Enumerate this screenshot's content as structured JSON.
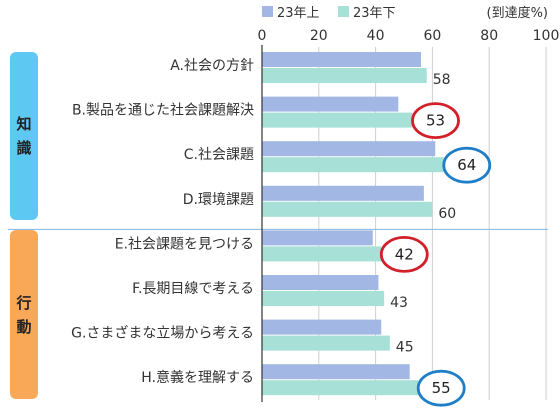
{
  "chart_data": {
    "type": "bar",
    "orientation": "horizontal",
    "unit_label": "(到達度%)",
    "xlim": [
      0,
      100
    ],
    "xticks": [
      0,
      20,
      40,
      60,
      80,
      100
    ],
    "grid": true,
    "legend_position": "top",
    "series": [
      {
        "name": "23年上",
        "color": "#a3b7e4"
      },
      {
        "name": "23年下",
        "color": "#a6e0d6"
      }
    ],
    "categories": [
      {
        "label": "A.社会の方針",
        "v1": 56,
        "v2": 58
      },
      {
        "label": "B.製品を通じた社会課題解決",
        "v1": 48,
        "v2": 53,
        "circle": "red"
      },
      {
        "label": "C.社会課題",
        "v1": 61,
        "v2": 64,
        "circle": "blue"
      },
      {
        "label": "D.環境課題",
        "v1": 57,
        "v2": 60
      },
      {
        "label": "E.社会課題を見つける",
        "v1": 39,
        "v2": 42,
        "circle": "red"
      },
      {
        "label": "F.長期目線で考える",
        "v1": 41,
        "v2": 43
      },
      {
        "label": "G.さまざまな立場から考える",
        "v1": 42,
        "v2": 45
      },
      {
        "label": "H.意義を理解する",
        "v1": 52,
        "v2": 55,
        "circle": "blue"
      }
    ],
    "groups": [
      {
        "label": [
          "知",
          "識"
        ],
        "color": "#5dc9f3",
        "start": 0,
        "end": 3
      },
      {
        "label": [
          "行",
          "動"
        ],
        "color": "#f9a857",
        "start": 4,
        "end": 7
      }
    ],
    "highlight_colors": {
      "red": "#d21f2a",
      "blue": "#1e7fc8"
    }
  }
}
